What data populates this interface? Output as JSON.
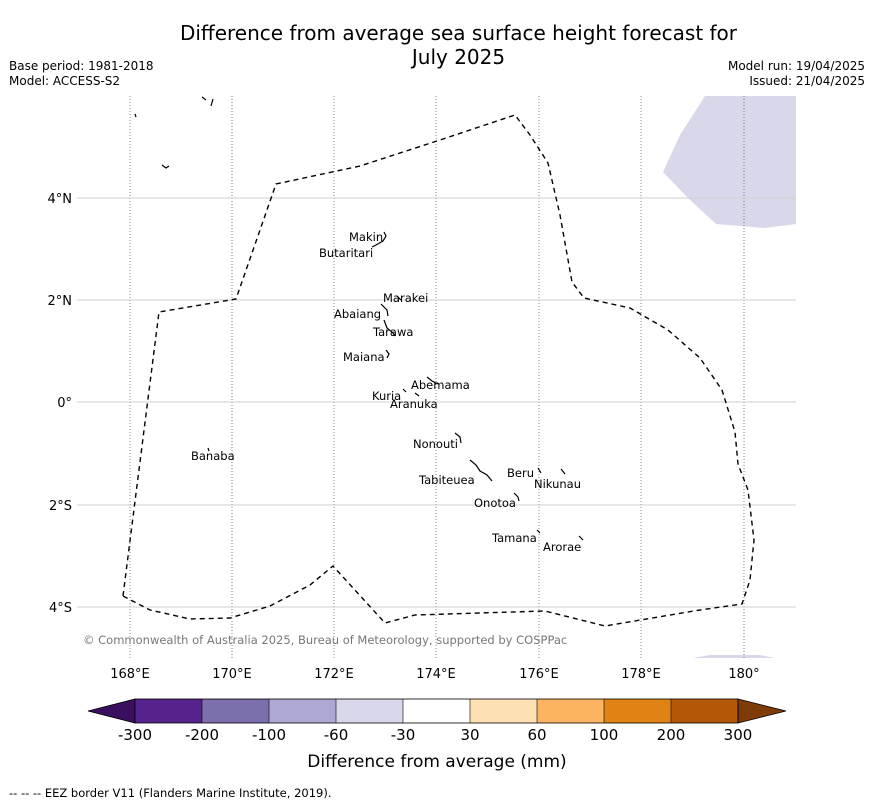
{
  "header": {
    "title_line1": "Difference from average sea surface height forecast for",
    "title_line2": "July 2025",
    "base_period": "Base period: 1981-2018",
    "model": "Model: ACCESS-S2",
    "model_run": "Model run: 19/04/2025",
    "issued": "Issued: 21/04/2025"
  },
  "map": {
    "lon_ticks": [
      "168°E",
      "170°E",
      "172°E",
      "174°E",
      "176°E",
      "178°E",
      "180°"
    ],
    "lat_ticks": [
      "4°N",
      "2°N",
      "0°",
      "2°S",
      "4°S"
    ],
    "copyright": "© Commonwealth of Australia 2025, Bureau of Meteorology, supported by COSPPac",
    "islands": [
      "Makin",
      "Butaritari",
      "Marakei",
      "Abaiang",
      "Tarawa",
      "Maiana",
      "Abemama",
      "Kuria",
      "Aranuka",
      "Banaba",
      "Nonouti",
      "Tabiteuea",
      "Beru",
      "Nikunau",
      "Onotoa",
      "Tamana",
      "Arorae"
    ],
    "anomaly_fill_color": "#d8d8ea"
  },
  "colorbar": {
    "label": "Difference from average (mm)",
    "tick_labels": [
      "-300",
      "-200",
      "-100",
      "-60",
      "-30",
      "30",
      "60",
      "100",
      "200",
      "300"
    ],
    "colors": [
      "#3b0f5f",
      "#55238c",
      "#7d6fab",
      "#aea9d2",
      "#d8d8ea",
      "#ffffff",
      "#fee0b5",
      "#fdb462",
      "#e08214",
      "#b35806",
      "#7f3b08"
    ]
  },
  "footer": {
    "legend_text": "--  --  -- EEZ border V11 (Flanders Marine Institute, 2019)."
  }
}
